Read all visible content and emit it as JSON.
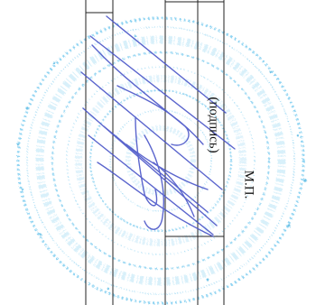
{
  "document": {
    "signature_caption": "(подпись)",
    "seal_caption": "М.П."
  },
  "colors": {
    "stamp": "#4fb8e6",
    "signature_ink": "#4a55c8",
    "lines": "#222222"
  }
}
